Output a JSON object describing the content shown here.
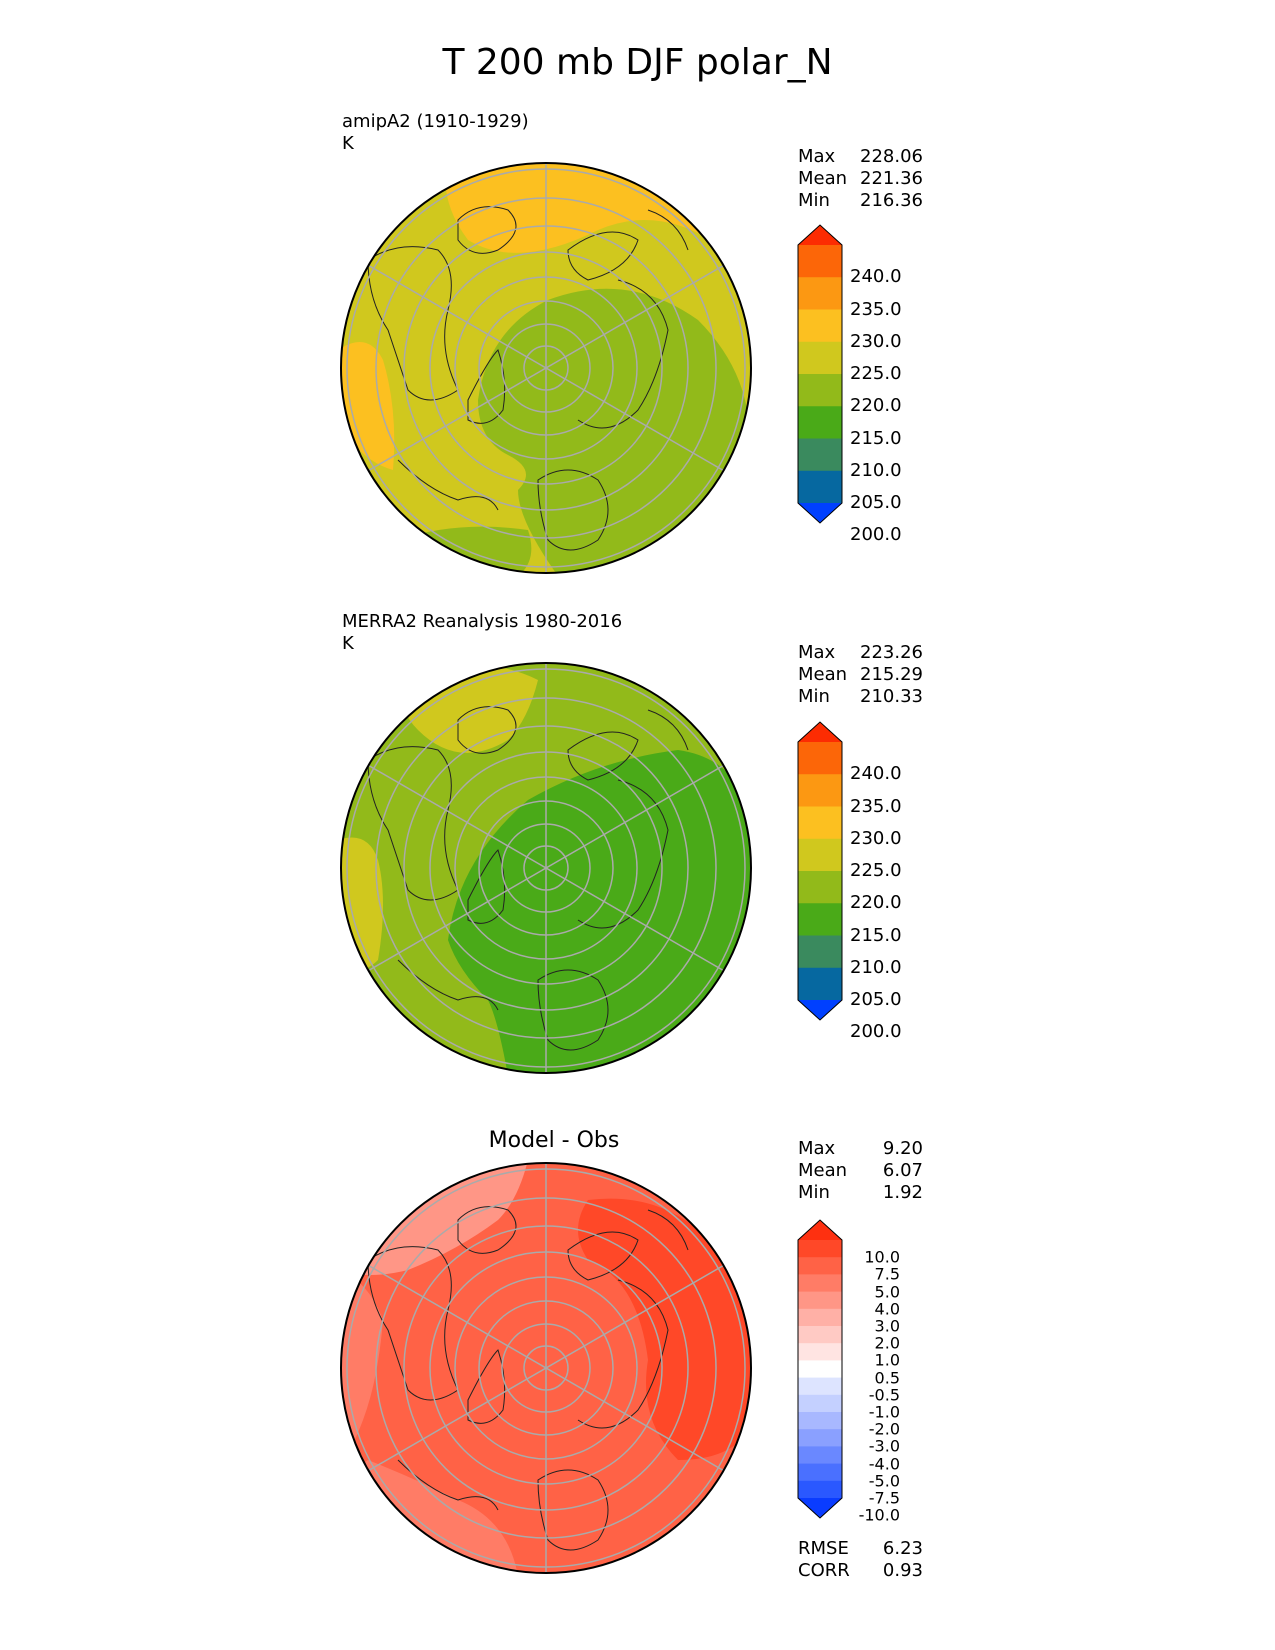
{
  "title": "T 200 mb DJF polar_N",
  "panels": [
    {
      "id": "model",
      "label_line1": "amipA2 (1910-1929)",
      "label_line2": "K",
      "stats": {
        "max_label": "Max",
        "max": "228.06",
        "mean_label": "Mean",
        "mean": "221.36",
        "min_label": "Min",
        "min": "216.36"
      },
      "colorbar": {
        "ticks": [
          "240.0",
          "235.0",
          "230.0",
          "225.0",
          "220.0",
          "215.0",
          "210.0",
          "205.0",
          "200.0"
        ],
        "colors": [
          "#0040ff",
          "#0668a0",
          "#3a8a5e",
          "#4aaa18",
          "#92ba1a",
          "#d0c81e",
          "#fcc020",
          "#fc9812",
          "#fc6608",
          "#fc2c02"
        ]
      }
    },
    {
      "id": "obs",
      "label_line1": "MERRA2 Reanalysis 1980-2016",
      "label_line2": "K",
      "stats": {
        "max_label": "Max",
        "max": "223.26",
        "mean_label": "Mean",
        "mean": "215.29",
        "min_label": "Min",
        "min": "210.33"
      },
      "colorbar": {
        "ticks": [
          "240.0",
          "235.0",
          "230.0",
          "225.0",
          "220.0",
          "215.0",
          "210.0",
          "205.0",
          "200.0"
        ],
        "colors": [
          "#0040ff",
          "#0668a0",
          "#3a8a5e",
          "#4aaa18",
          "#92ba1a",
          "#d0c81e",
          "#fcc020",
          "#fc9812",
          "#fc6608",
          "#fc2c02"
        ]
      }
    },
    {
      "id": "diff",
      "title": "Model - Obs",
      "stats": {
        "max_label": "Max",
        "max": "9.20",
        "mean_label": "Mean",
        "mean": "6.07",
        "min_label": "Min",
        "min": "1.92"
      },
      "rmse_label": "RMSE",
      "rmse": "6.23",
      "corr_label": "CORR",
      "corr": "0.93",
      "colorbar": {
        "ticks": [
          "10.0",
          "7.5",
          "5.0",
          "4.0",
          "3.0",
          "2.0",
          "1.0",
          "0.5",
          "-0.5",
          "-1.0",
          "-2.0",
          "-3.0",
          "-4.0",
          "-5.0",
          "-7.5",
          "-10.0"
        ],
        "colors": [
          "#0a3cff",
          "#2a58ff",
          "#4a70ff",
          "#6a88ff",
          "#8aa0ff",
          "#a8b8ff",
          "#c4d0ff",
          "#dde4ff",
          "#ffffff",
          "#ffe4e2",
          "#ffcac4",
          "#ffb0a6",
          "#ff9686",
          "#ff7c66",
          "#ff6246",
          "#ff4828",
          "#fe3010"
        ]
      }
    }
  ],
  "map_data": {
    "projection": "north polar stereographic",
    "fields": {
      "model": {
        "base": "#d0c81e",
        "pole_region": "#92ba1a",
        "warm_regions": "#fcc020"
      },
      "obs": {
        "base": "#92ba1a",
        "pole_region": "#4aaa18",
        "warm_regions": "#d0c81e"
      },
      "diff": {
        "base": "#ff6246",
        "strong_regions": "#ff4828",
        "weak_regions": "#ff9686"
      }
    }
  }
}
